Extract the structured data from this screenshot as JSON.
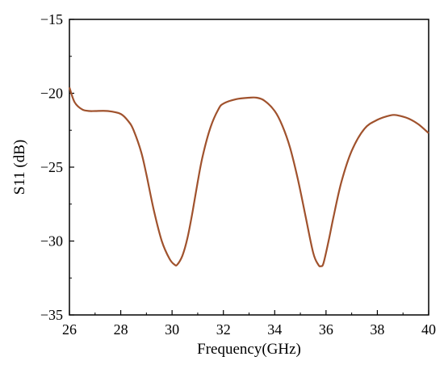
{
  "chart_data": {
    "type": "line",
    "title": "",
    "xlabel": "Frequency(GHz)",
    "ylabel": "S11 (dB)",
    "xlim": [
      26,
      40
    ],
    "ylim": [
      -35,
      -15
    ],
    "xticks": [
      26,
      28,
      30,
      32,
      34,
      36,
      38,
      40
    ],
    "yticks": [
      -35,
      -30,
      -25,
      -20,
      -15
    ],
    "grid": false,
    "legend": "none",
    "series": [
      {
        "color": "#A0522D",
        "x": [
          26.0,
          26.2,
          26.5,
          26.8,
          27.0,
          27.5,
          28.0,
          28.3,
          28.5,
          28.8,
          29.0,
          29.3,
          29.6,
          29.9,
          30.1,
          30.2,
          30.4,
          30.6,
          30.8,
          31.0,
          31.2,
          31.5,
          31.8,
          32.0,
          32.5,
          33.0,
          33.3,
          33.6,
          34.0,
          34.3,
          34.6,
          34.9,
          35.2,
          35.5,
          35.7,
          35.8,
          35.9,
          36.1,
          36.3,
          36.6,
          37.0,
          37.5,
          38.0,
          38.5,
          38.8,
          39.2,
          39.6,
          40.0
        ],
        "y": [
          -19.6,
          -20.6,
          -21.1,
          -21.2,
          -21.2,
          -21.2,
          -21.4,
          -21.9,
          -22.5,
          -24.0,
          -25.5,
          -28.0,
          -30.0,
          -31.2,
          -31.6,
          -31.6,
          -31.0,
          -29.8,
          -28.0,
          -26.0,
          -24.2,
          -22.3,
          -21.1,
          -20.7,
          -20.4,
          -20.3,
          -20.3,
          -20.5,
          -21.2,
          -22.2,
          -23.7,
          -25.8,
          -28.3,
          -30.8,
          -31.6,
          -31.7,
          -31.5,
          -30.0,
          -28.3,
          -26.0,
          -23.9,
          -22.4,
          -21.8,
          -21.5,
          -21.5,
          -21.7,
          -22.1,
          -22.7
        ]
      }
    ]
  }
}
